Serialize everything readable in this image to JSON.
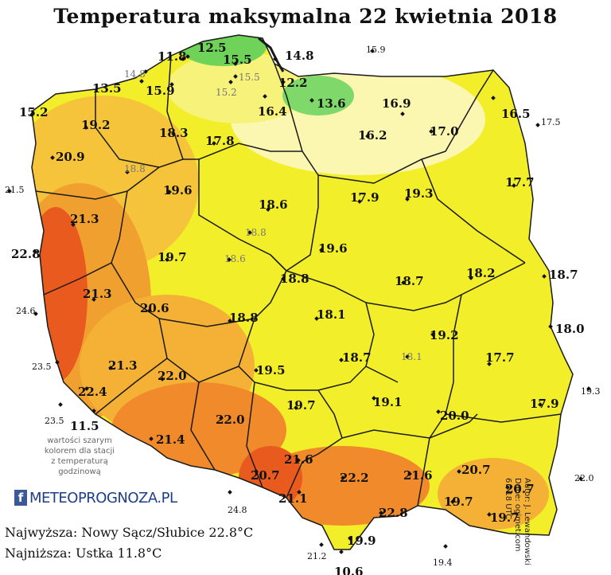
{
  "map": {
    "title": "Temperatura maksymalna 22 kwietnia 2018",
    "note": "wartości szarym\nkolorem dla stacji\nz temperaturą\ngodzinową",
    "logo": {
      "prefix": "f",
      "text": "METEOPROGNOZA.PL"
    },
    "max_line": "Najwyższa: Nowy Sącz/Słubice 22.8°C",
    "min_line": "Najniższa: Ustka 11.8°C",
    "credits": "Autor: J. Lewandowski\nDane: ogimet.com\n6 - 18 UTC",
    "colors": {
      "cool": "#6fd35a",
      "pale": "#fbf6b0",
      "yellow": "#f2ee2a",
      "warm": "#f5c43a",
      "hot": "#f08a2a",
      "hottest": "#e85a1e",
      "boundary": "#1a1a1a",
      "sea": "#ffffff"
    },
    "stations": [
      {
        "id": "s1",
        "v": "12.5",
        "g": false,
        "o": false
      },
      {
        "id": "s2",
        "v": "11.8",
        "g": false,
        "o": false
      },
      {
        "id": "s3",
        "v": "15.5",
        "g": false,
        "o": false
      },
      {
        "id": "s4",
        "v": "14.8",
        "g": false,
        "o": false
      },
      {
        "id": "s5",
        "v": "15.9",
        "g": false,
        "o": true
      },
      {
        "id": "s6",
        "v": "14.8",
        "g": true,
        "o": false
      },
      {
        "id": "s7",
        "v": "15.5",
        "g": true,
        "o": false
      },
      {
        "id": "s8",
        "v": "15.2",
        "g": true,
        "o": false
      },
      {
        "id": "s9",
        "v": "12.2",
        "g": false,
        "o": false
      },
      {
        "id": "s10",
        "v": "13.5",
        "g": false,
        "o": false
      },
      {
        "id": "s11",
        "v": "15.9",
        "g": false,
        "o": false
      },
      {
        "id": "s12",
        "v": "16.4",
        "g": false,
        "o": false
      },
      {
        "id": "s13",
        "v": "13.6",
        "g": false,
        "o": false
      },
      {
        "id": "s14",
        "v": "16.9",
        "g": false,
        "o": false
      },
      {
        "id": "s15",
        "v": "15.2",
        "g": false,
        "o": false
      },
      {
        "id": "s16",
        "v": "16.5",
        "g": false,
        "o": false
      },
      {
        "id": "s17",
        "v": "17.5",
        "g": false,
        "o": true
      },
      {
        "id": "s18",
        "v": "19.2",
        "g": false,
        "o": false
      },
      {
        "id": "s19",
        "v": "18.3",
        "g": false,
        "o": false
      },
      {
        "id": "s20",
        "v": "16.2",
        "g": false,
        "o": false
      },
      {
        "id": "s21",
        "v": "17.0",
        "g": false,
        "o": false
      },
      {
        "id": "s22",
        "v": "20.9",
        "g": false,
        "o": false
      },
      {
        "id": "s23",
        "v": "17.8",
        "g": false,
        "o": false
      },
      {
        "id": "s24",
        "v": "18.8",
        "g": true,
        "o": false
      },
      {
        "id": "s25",
        "v": "17.7",
        "g": false,
        "o": false
      },
      {
        "id": "s26",
        "v": "21.5",
        "g": false,
        "o": true
      },
      {
        "id": "s27",
        "v": "19.6",
        "g": false,
        "o": false
      },
      {
        "id": "s28",
        "v": "18.6",
        "g": false,
        "o": false
      },
      {
        "id": "s29",
        "v": "17.9",
        "g": false,
        "o": false
      },
      {
        "id": "s30",
        "v": "19.3",
        "g": false,
        "o": false
      },
      {
        "id": "s31",
        "v": "21.3",
        "g": false,
        "o": false
      },
      {
        "id": "s32",
        "v": "18.8",
        "g": true,
        "o": false
      },
      {
        "id": "s33",
        "v": "22.8",
        "g": false,
        "o": false
      },
      {
        "id": "s34",
        "v": "19.7",
        "g": false,
        "o": false
      },
      {
        "id": "s35",
        "v": "18.6",
        "g": true,
        "o": false
      },
      {
        "id": "s36",
        "v": "19.6",
        "g": false,
        "o": false
      },
      {
        "id": "s37",
        "v": "18.7",
        "g": false,
        "o": false
      },
      {
        "id": "s38",
        "v": "18.2",
        "g": false,
        "o": false
      },
      {
        "id": "s39",
        "v": "18.7",
        "g": false,
        "o": false
      },
      {
        "id": "s40",
        "v": "18.8",
        "g": false,
        "o": false
      },
      {
        "id": "s41",
        "v": "21.3",
        "g": false,
        "o": false
      },
      {
        "id": "s42",
        "v": "24.6",
        "g": false,
        "o": true
      },
      {
        "id": "s43",
        "v": "20.6",
        "g": false,
        "o": false
      },
      {
        "id": "s44",
        "v": "18.1",
        "g": false,
        "o": false
      },
      {
        "id": "s45",
        "v": "18.8",
        "g": false,
        "o": false
      },
      {
        "id": "s46",
        "v": "19.2",
        "g": false,
        "o": false
      },
      {
        "id": "s47",
        "v": "18.0",
        "g": false,
        "o": false
      },
      {
        "id": "s48",
        "v": "23.5",
        "g": false,
        "o": true
      },
      {
        "id": "s49",
        "v": "17.7",
        "g": false,
        "o": false
      },
      {
        "id": "s50",
        "v": "18.7",
        "g": false,
        "o": false
      },
      {
        "id": "s51",
        "v": "18.1",
        "g": true,
        "o": false
      },
      {
        "id": "s52",
        "v": "21.3",
        "g": false,
        "o": false
      },
      {
        "id": "s53",
        "v": "22.0",
        "g": false,
        "o": false
      },
      {
        "id": "s54",
        "v": "19.5",
        "g": false,
        "o": false
      },
      {
        "id": "s55",
        "v": "22.4",
        "g": false,
        "o": false
      },
      {
        "id": "s56",
        "v": "19.3",
        "g": false,
        "o": true
      },
      {
        "id": "s57",
        "v": "19.1",
        "g": false,
        "o": false
      },
      {
        "id": "s58",
        "v": "17.9",
        "g": false,
        "o": false
      },
      {
        "id": "s59",
        "v": "23.5",
        "g": false,
        "o": true
      },
      {
        "id": "s60",
        "v": "19.7",
        "g": false,
        "o": false
      },
      {
        "id": "s61",
        "v": "11.5",
        "g": false,
        "o": false
      },
      {
        "id": "s62",
        "v": "22.0",
        "g": false,
        "o": false
      },
      {
        "id": "s63",
        "v": "20.0",
        "g": false,
        "o": false
      },
      {
        "id": "s64",
        "v": "21.4",
        "g": false,
        "o": false
      },
      {
        "id": "s65",
        "v": "21.6",
        "g": false,
        "o": false
      },
      {
        "id": "s66",
        "v": "20.7",
        "g": false,
        "o": false
      },
      {
        "id": "s67",
        "v": "22.2",
        "g": false,
        "o": false
      },
      {
        "id": "s68",
        "v": "21.6",
        "g": false,
        "o": false
      },
      {
        "id": "s69",
        "v": "20.7",
        "g": false,
        "o": false
      },
      {
        "id": "s70",
        "v": "22.0",
        "g": false,
        "o": true
      },
      {
        "id": "s71",
        "v": "20.7",
        "g": false,
        "o": false
      },
      {
        "id": "s72",
        "v": "21.1",
        "g": false,
        "o": false
      },
      {
        "id": "s73",
        "v": "19.7",
        "g": false,
        "o": false
      },
      {
        "id": "s74",
        "v": "24.8",
        "g": false,
        "o": true
      },
      {
        "id": "s75",
        "v": "22.8",
        "g": false,
        "o": false
      },
      {
        "id": "s76",
        "v": "19.7",
        "g": false,
        "o": false
      },
      {
        "id": "s77",
        "v": "19.9",
        "g": false,
        "o": false
      },
      {
        "id": "s78",
        "v": "21.2",
        "g": false,
        "o": true
      },
      {
        "id": "s79",
        "v": "19.4",
        "g": false,
        "o": true
      },
      {
        "id": "s80",
        "v": "10.6",
        "g": false,
        "o": false
      }
    ]
  }
}
